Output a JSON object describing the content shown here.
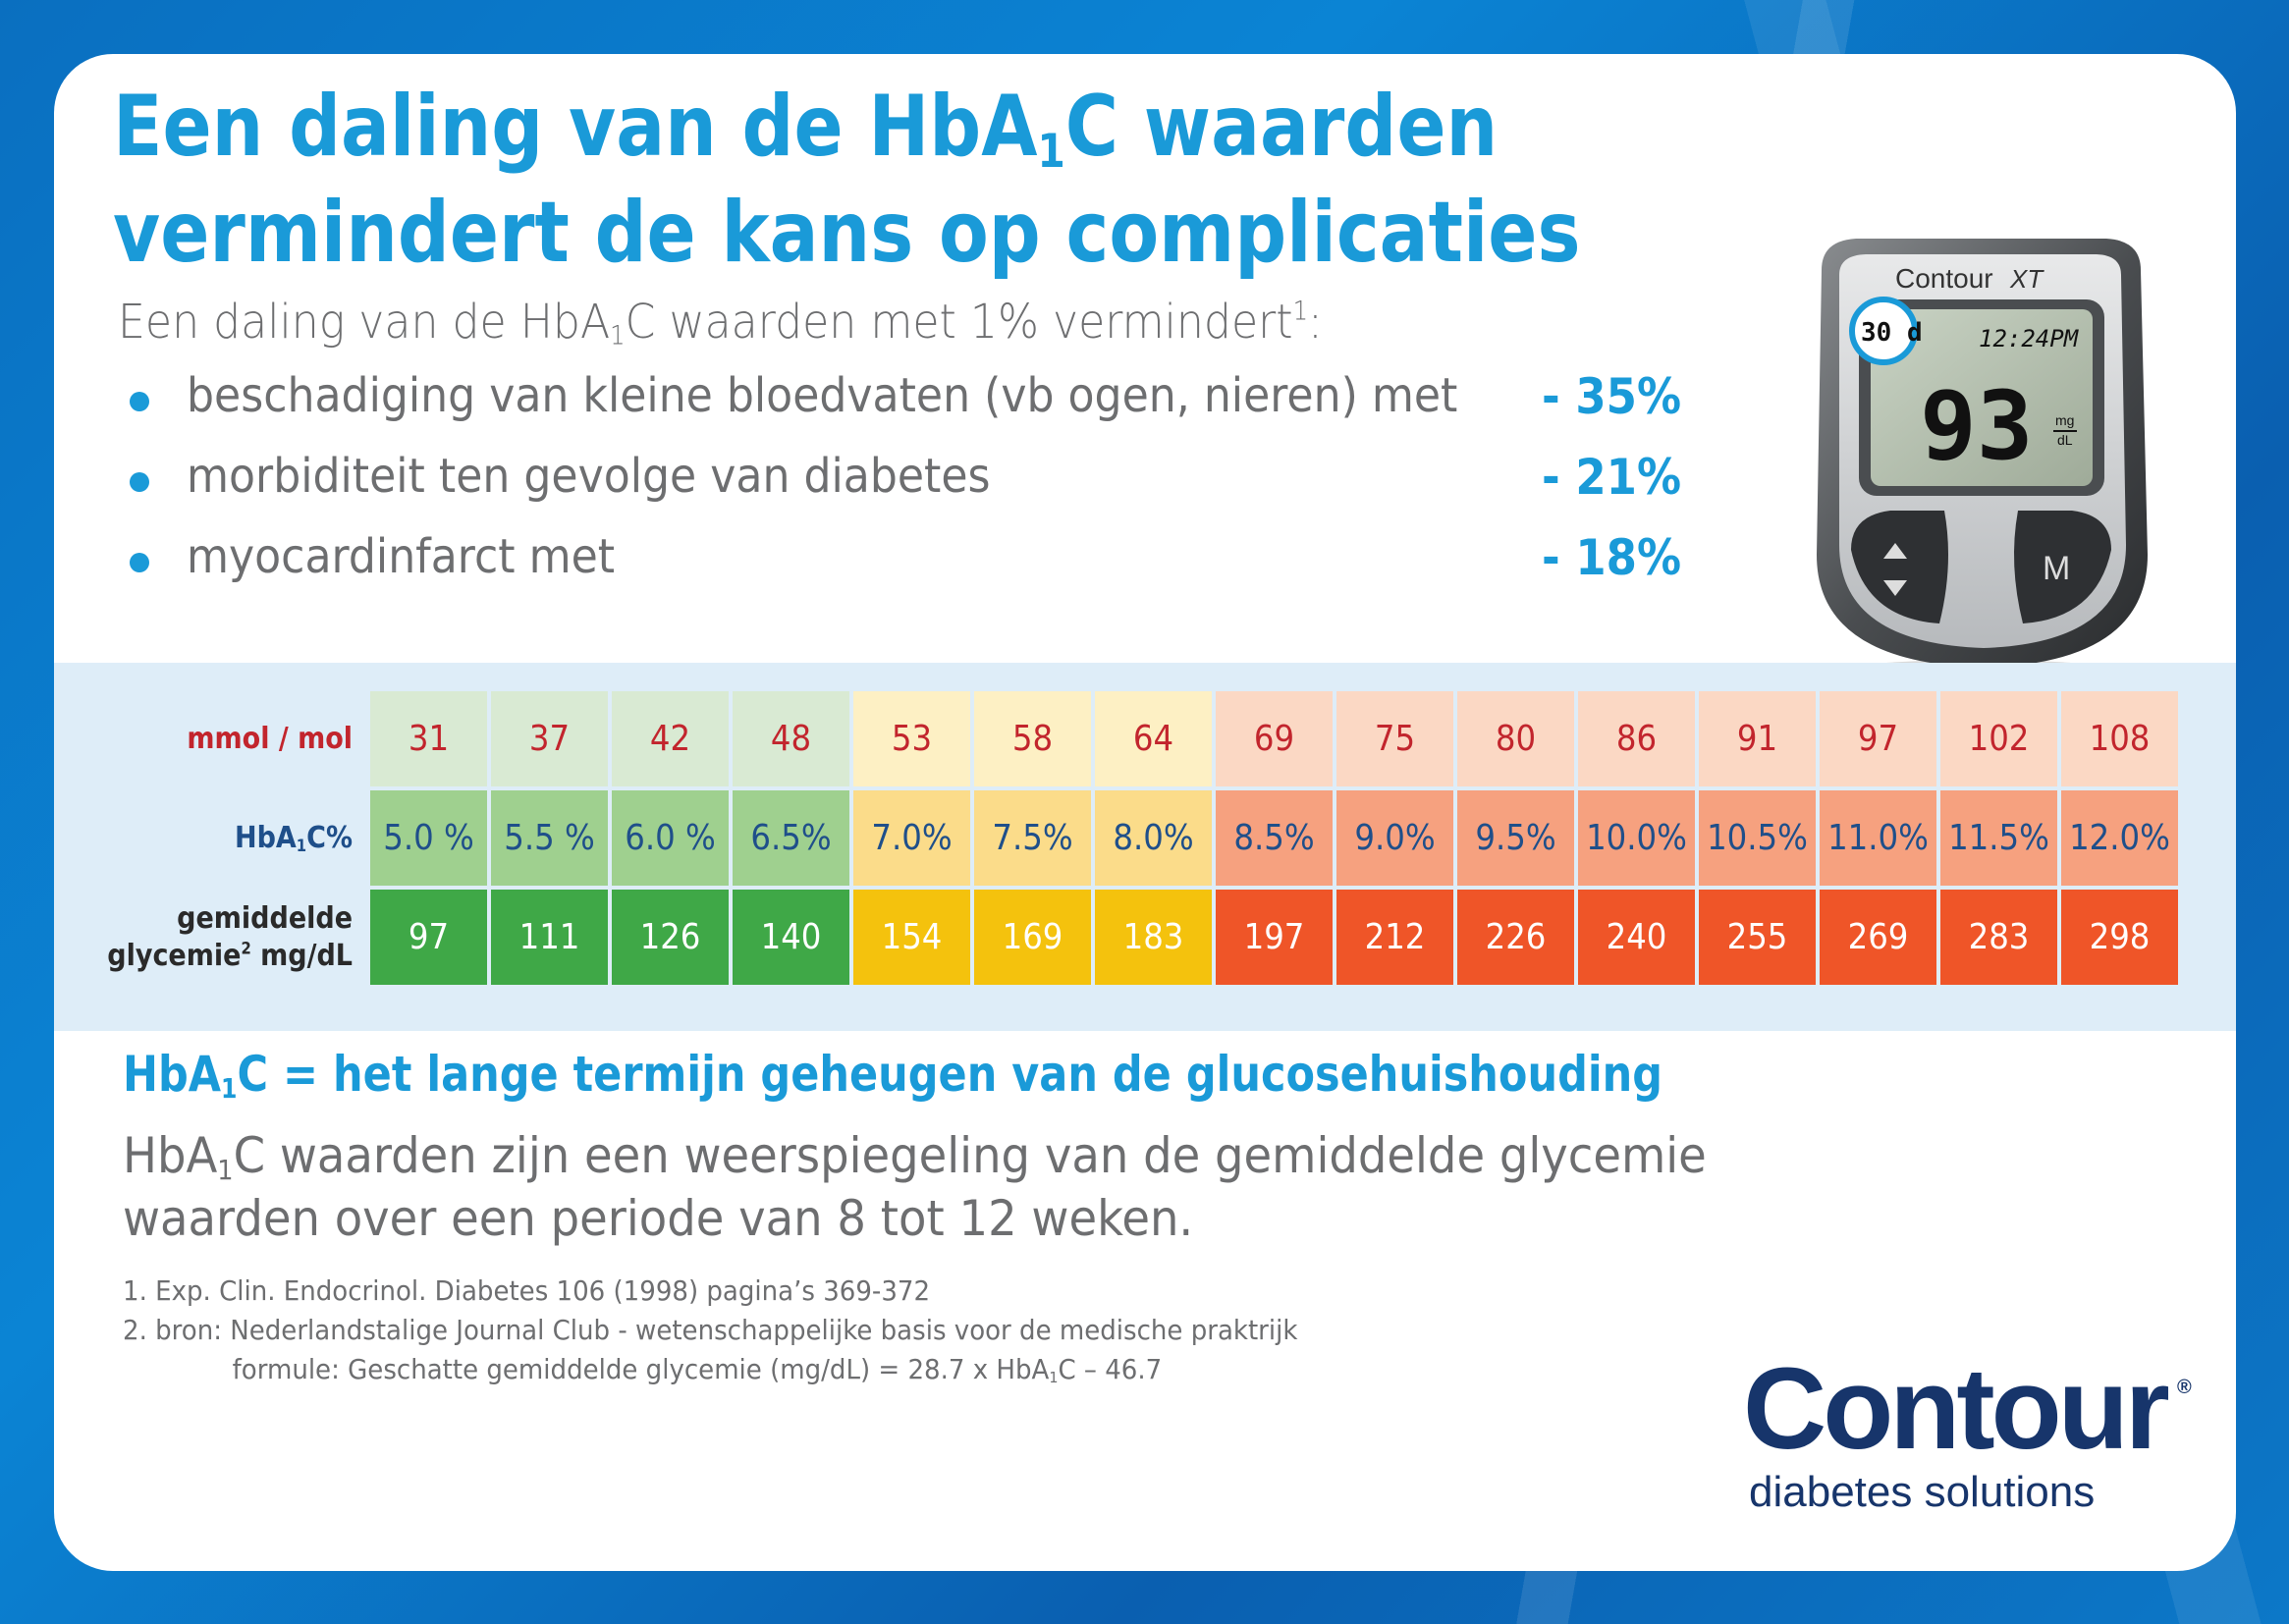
{
  "title": {
    "line1_pre": "Een daling van de HbA",
    "line1_sub": "1",
    "line1_post": "C waarden",
    "line2": "vermindert de kans op complicaties"
  },
  "intro": {
    "pre": "Een daling van de HbA",
    "sub": "1",
    "post": "C waarden met 1% vermindert",
    "sup": "1",
    "end": ":"
  },
  "bullets": [
    {
      "text": "beschadiging van kleine bloedvaten (vb ogen, nieren) met",
      "value": "- 35%"
    },
    {
      "text": "morbiditeit ten gevolge van diabetes",
      "value": "- 21%"
    },
    {
      "text": "myocardinfarct met",
      "value": "- 18%"
    }
  ],
  "meter": {
    "brand": "Contour",
    "model": "XT",
    "badge": "30 d",
    "time": "12:24PM",
    "reading": "93",
    "unit_top": "mg",
    "unit_bottom": "dL",
    "button_m": "M"
  },
  "table": {
    "mmol_label": "mmol / mol",
    "hba_label_pre": "HbA",
    "hba_label_sub": "1",
    "hba_label_post": "C%",
    "glyc_label_line1": "gemiddelde",
    "glyc_label_line2": "glycemie",
    "glyc_label_sup": "2",
    "glyc_label_unit": " mg/dL",
    "mmol": [
      "31",
      "37",
      "42",
      "48",
      "53",
      "58",
      "64",
      "69",
      "75",
      "80",
      "86",
      "91",
      "97",
      "102",
      "108"
    ],
    "hba1c": [
      "5.0 %",
      "5.5 %",
      "6.0 %",
      "6.5%",
      "7.0%",
      "7.5%",
      "8.0%",
      "8.5%",
      "9.0%",
      "9.5%",
      "10.0%",
      "10.5%",
      "11.0%",
      "11.5%",
      "12.0%"
    ],
    "glycemia": [
      "97",
      "111",
      "126",
      "140",
      "154",
      "169",
      "183",
      "197",
      "212",
      "226",
      "240",
      "255",
      "269",
      "283",
      "298"
    ],
    "colors": {
      "green_light": "#d9ead3",
      "green_mid": "#9fd08f",
      "green_dark": "#3fa847",
      "yellow_light": "#fdf0c4",
      "yellow_mid": "#fbdc8a",
      "yellow_dark": "#f4c20d",
      "red_light": "#fbd8c4",
      "red_mid": "#f6a17f",
      "red_dark": "#ef5528"
    }
  },
  "section": {
    "head_pre": "HbA",
    "head_sub": "1",
    "head_post": "C = het lange termijn geheugen van de glucosehuishouding",
    "body_pre": "HbA",
    "body_sub": "1",
    "body_post": "C waarden zijn een weerspiegeling van de gemiddelde glycemie waarden over een periode van 8 tot 12 weken."
  },
  "footnotes": {
    "fn1": "1. Exp. Clin. Endocrinol. Diabetes 106 (1998) pagina’s 369-372",
    "fn2": "2. bron: Nederlandstalige Journal Club - wetenschappelijke basis voor de medische praktrijk",
    "fn3_pre": "formule: Geschatte gemiddelde glycemie (mg/dL) = 28.7 x HbA",
    "fn3_sub": "1",
    "fn3_post": "C – 46.7"
  },
  "logo": {
    "word": "Contour",
    "reg": "®",
    "sub": "diabetes solutions"
  }
}
